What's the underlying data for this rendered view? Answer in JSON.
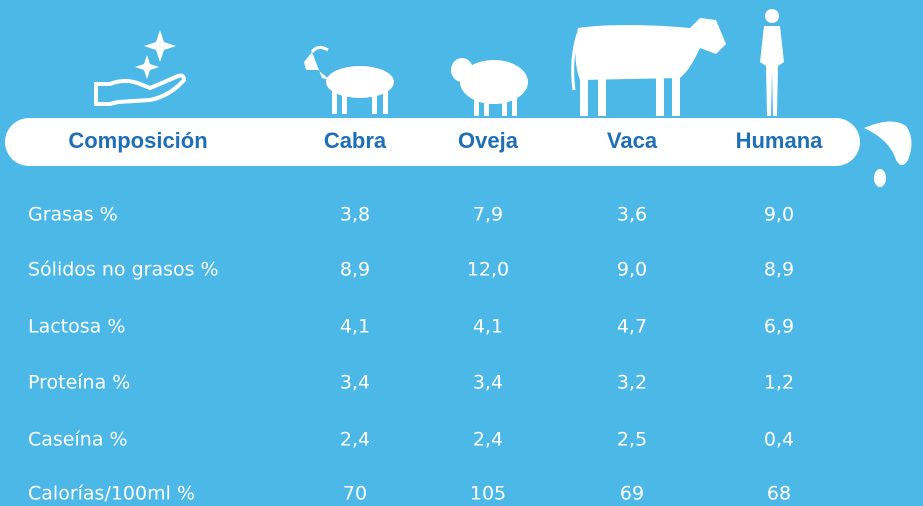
{
  "table": {
    "header": [
      "Composición",
      "Cabra",
      "Oveja",
      "Vaca",
      "Humana"
    ],
    "rows": [
      [
        "Grasas %",
        "3,8",
        "7,9",
        "3,6",
        "9,0"
      ],
      [
        "Sólidos no grasos %",
        "8,9",
        "12,0",
        "9,0",
        "8,9"
      ],
      [
        "Lactosa %",
        "4,1",
        "4,1",
        "4,7",
        "6,9"
      ],
      [
        "Proteína %",
        "3,4",
        "3,4",
        "3,2",
        "1,2"
      ],
      [
        "Caseína %",
        "2,4",
        "2,4",
        "2,5",
        "0,4"
      ],
      [
        "Calorías/100ml %",
        "70",
        "105",
        "69",
        "68"
      ]
    ]
  }
}
